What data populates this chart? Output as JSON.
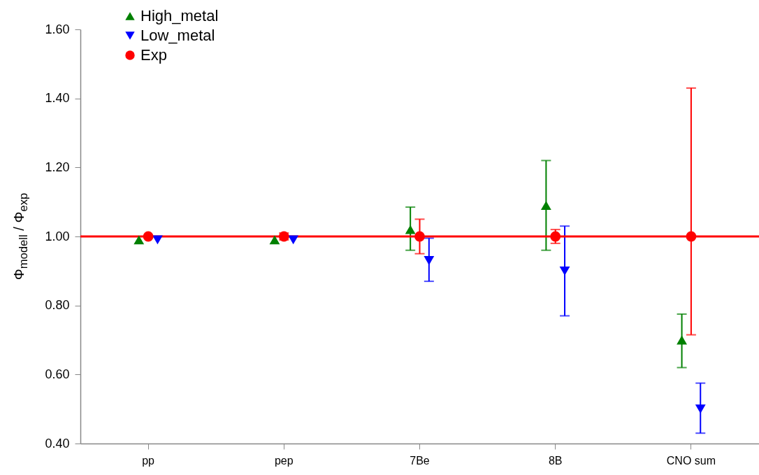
{
  "chart_data": {
    "type": "scatter",
    "ylabel": "Φ$_{modell}$ / Φ$_{exp}$",
    "categories": [
      "pp",
      "pep",
      "7Be",
      "8B",
      "CNO sum"
    ],
    "series": [
      {
        "name": "High_metal",
        "color": "#008000",
        "marker": "triangle",
        "values": [
          0.99,
          0.99,
          1.02,
          1.09,
          0.7
        ],
        "errors": [
          null,
          null,
          [
            0.96,
            1.085
          ],
          [
            0.96,
            1.22
          ],
          [
            0.62,
            0.775
          ]
        ]
      },
      {
        "name": "Low_metal",
        "color": "#0000ff",
        "marker": "triangle-down",
        "values": [
          0.99,
          0.99,
          0.93,
          0.9,
          0.5
        ],
        "errors": [
          null,
          null,
          [
            0.87,
            0.995
          ],
          [
            0.77,
            1.03
          ],
          [
            0.43,
            0.575
          ]
        ]
      },
      {
        "name": "Exp",
        "color": "#ff0000",
        "marker": "circle",
        "values": [
          1.0,
          1.0,
          1.0,
          1.0,
          1.0
        ],
        "errors": [
          null,
          0.01,
          0.05,
          0.02,
          [
            0.715,
            1.43
          ]
        ]
      }
    ],
    "ylim": [
      0.4,
      1.6
    ],
    "yticks": [
      {
        "value": 0.4,
        "label": "0.40"
      },
      {
        "value": 0.6,
        "label": "0.60"
      },
      {
        "value": 0.8,
        "label": "0.80"
      },
      {
        "value": 1.0,
        "label": "1.00"
      },
      {
        "value": 1.2,
        "label": "1.20"
      },
      {
        "value": 1.4,
        "label": "1.40"
      },
      {
        "value": 1.6,
        "label": "1.60"
      }
    ],
    "ref_lines": [
      {
        "axis": "y",
        "value": 1.0,
        "color": "#ff0000"
      }
    ],
    "legend": "top left",
    "grid": false
  }
}
